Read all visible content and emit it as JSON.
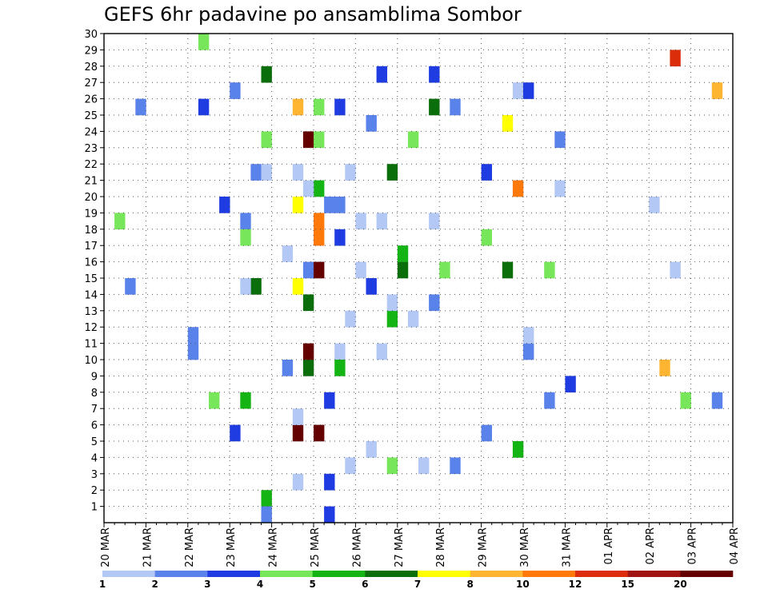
{
  "chart_data": {
    "type": "heatmap",
    "title": "GEFS 6hr padavine po ansamblima Sombor",
    "x_labels": [
      "20 MAR",
      "21 MAR",
      "22 MAR",
      "23 MAR",
      "24 MAR",
      "25 MAR",
      "26 MAR",
      "27 MAR",
      "28 MAR",
      "29 MAR",
      "30 MAR",
      "31 MAR",
      "01 APR",
      "02 APR",
      "03 APR",
      "04 APR"
    ],
    "y_labels": [
      "1",
      "2",
      "3",
      "4",
      "5",
      "6",
      "7",
      "8",
      "9",
      "10",
      "11",
      "12",
      "13",
      "14",
      "15",
      "16",
      "17",
      "18",
      "19",
      "20",
      "21",
      "22",
      "23",
      "24",
      "25",
      "26",
      "27",
      "28",
      "29",
      "30"
    ],
    "x_unit": "6-hour step from 20 MAR 00Z",
    "y_unit": "ensemble member",
    "x_range": [
      0,
      60
    ],
    "y_range": [
      0,
      30
    ],
    "grid": true,
    "color_scale": {
      "levels": [
        "1",
        "2",
        "3",
        "4",
        "5",
        "6",
        "7",
        "8",
        "10",
        "12",
        "15",
        "20"
      ],
      "colors": [
        "#b4c8f5",
        "#5a82eb",
        "#1e3ce1",
        "#78e65a",
        "#14b414",
        "#0a6e0a",
        "#ffff00",
        "#ffb432",
        "#ff780a",
        "#dc2d0a",
        "#a01414",
        "#640000"
      ]
    },
    "cells": [
      [
        1,
        1,
        3
      ],
      [
        2,
        1,
        1
      ],
      [
        3,
        1,
        1
      ],
      [
        12,
        1,
        2
      ],
      [
        12,
        -1,
        1
      ],
      [
        13,
        -1,
        1
      ],
      [
        13,
        -1,
        4
      ],
      [
        14,
        2,
        5
      ],
      [
        15,
        2,
        3
      ],
      [
        15,
        -1,
        4
      ],
      [
        19,
        -1,
        5
      ],
      [
        15,
        12,
        5
      ],
      [
        18,
        2,
        6
      ],
      [
        18,
        1,
        6
      ],
      [
        18,
        1,
        7
      ],
      [
        18,
        1,
        11
      ],
      [
        18,
        5,
        0
      ],
      [
        19,
        4,
        11
      ],
      [
        19,
        2,
        11
      ],
      [
        19,
        3,
        1
      ],
      [
        20,
        4,
        3
      ],
      [
        20,
        3,
        11
      ],
      [
        20,
        5,
        11
      ],
      [
        20,
        2,
        8
      ],
      [
        20,
        3,
        4
      ],
      [
        20,
        5,
        8
      ],
      [
        21,
        6,
        2
      ],
      [
        21,
        3,
        2
      ],
      [
        21,
        5,
        2
      ],
      [
        22,
        0,
        1
      ],
      [
        22,
        2,
        0
      ],
      [
        22,
        5,
        2
      ],
      [
        23,
        0,
        0
      ],
      [
        23,
        1,
        0
      ],
      [
        23,
        2,
        0
      ],
      [
        24,
        0,
        0
      ],
      [
        24,
        1,
        0
      ],
      [
        25,
        1,
        2
      ],
      [
        25,
        0,
        1
      ],
      [
        25,
        0,
        0
      ],
      [
        26,
        0,
        2
      ],
      [
        26,
        -1,
        0
      ],
      [
        26,
        2,
        0
      ],
      [
        27,
        0,
        4
      ],
      [
        27,
        0,
        5
      ],
      [
        27,
        1,
        3
      ],
      [
        27,
        3,
        0
      ],
      [
        28,
        0,
        5
      ],
      [
        28,
        -1,
        4
      ],
      [
        29,
        -1,
        0
      ],
      [
        29,
        -1,
        3
      ],
      [
        30,
        -1,
        0
      ],
      [
        31,
        0,
        2
      ],
      [
        31,
        -1,
        0
      ],
      [
        8,
        3,
        1
      ],
      [
        8,
        -2,
        1
      ],
      [
        9,
        4,
        2
      ],
      [
        9,
        -3,
        3
      ],
      [
        10,
        -3,
        3
      ],
      [
        11,
        4,
        2
      ],
      [
        13,
        -3,
        0
      ],
      [
        13,
        4,
        3
      ],
      [
        14,
        -3,
        1
      ],
      [
        15,
        -3,
        0
      ],
      [
        15,
        3,
        1
      ],
      [
        15,
        2,
        0
      ],
      [
        17,
        1,
        1
      ],
      [
        17,
        4,
        0
      ],
      [
        18,
        0,
        0
      ],
      [
        18,
        4,
        0
      ],
      [
        19,
        3,
        5
      ],
      [
        19,
        5,
        0
      ],
      [
        20,
        6,
        3
      ],
      [
        21,
        6,
        1
      ],
      [
        22,
        1,
        2
      ],
      [
        22,
        5,
        4
      ],
      [
        30,
        6,
        5
      ],
      [
        31,
        6,
        5
      ],
      [
        31,
        5,
        1
      ],
      [
        32,
        3,
        3
      ],
      [
        33,
        4,
        1
      ],
      [
        33,
        1,
        1
      ],
      [
        36,
        -5,
        1
      ],
      [
        36,
        2,
        3
      ],
      [
        36,
        4,
        2
      ],
      [
        38,
        2,
        5
      ],
      [
        38,
        0,
        6
      ],
      [
        39,
        0,
        4
      ],
      [
        39,
        -1,
        0
      ],
      [
        39,
        1,
        8
      ],
      [
        40,
        2,
        1
      ],
      [
        40,
        -1,
        0
      ],
      [
        40,
        5,
        2
      ],
      [
        42,
        5,
        1
      ],
      [
        42,
        5,
        3
      ],
      [
        43,
        5,
        0
      ],
      [
        43,
        6,
        1
      ],
      [
        44,
        -5,
        2
      ],
      [
        52,
        -5,
        0
      ],
      [
        53,
        5,
        7
      ],
      [
        54,
        1,
        9
      ],
      [
        54,
        -4,
        0
      ],
      [
        55,
        -1,
        3
      ],
      [
        58,
        -5,
        1
      ],
      [
        58,
        5,
        7
      ]
    ]
  }
}
